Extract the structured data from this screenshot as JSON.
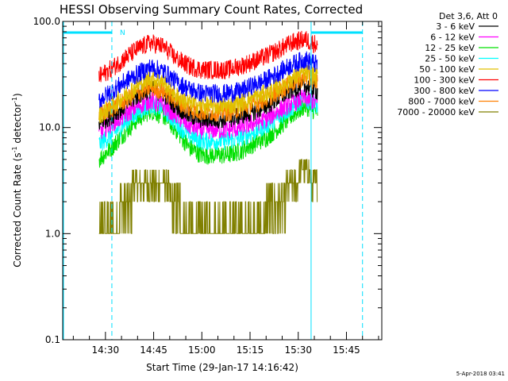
{
  "colors": {
    "3-6": "#000000",
    "6-12": "#ff00ff",
    "12-25": "#00e000",
    "25-50": "#00ffff",
    "50-100": "#e0c000",
    "100-300": "#ff0000",
    "300-800": "#0000ff",
    "800-7000": "#ff8000",
    "7000-20000": "#808000",
    "flag": "#00e0ff"
  },
  "chart_data": {
    "type": "line",
    "title": "HESSI Observing Summary Count Rates, Corrected",
    "xlabel": "Start Time (29-Jan-17 14:16:42)",
    "ylabel": "Corrected Count Rate (s⁻¹ detector⁻¹)",
    "ylabel_main": "Corrected Count Rate (s",
    "ylabel_sup1": "-1",
    "ylabel_mid": " detector",
    "ylabel_sup2": "-1",
    "ylabel_end": ")",
    "y_scale": "log",
    "ylim": [
      0.1,
      100
    ],
    "y_ticks": [
      "100.0",
      "10.0",
      "1.0",
      "0.1"
    ],
    "x_range_minutes": [
      "14:16:42",
      "15:56:00"
    ],
    "x_ticks": [
      "14:30",
      "14:45",
      "15:00",
      "15:15",
      "15:30",
      "15:45"
    ],
    "legend_title": "Det 3,6, Att 0",
    "legend_position": "right",
    "data_time_range": [
      "14:28:00",
      "15:36:00"
    ],
    "x": [
      "14:28",
      "14:32",
      "14:36",
      "14:40",
      "14:44",
      "14:48",
      "14:52",
      "14:56",
      "15:00",
      "15:04",
      "15:08",
      "15:12",
      "15:16",
      "15:20",
      "15:24",
      "15:28",
      "15:32",
      "15:36"
    ],
    "series": [
      {
        "name": "3 - 6 keV",
        "key": "3-6",
        "values": [
          11,
          13,
          16,
          20,
          23,
          21,
          16,
          13,
          12,
          12,
          12,
          13,
          14,
          16,
          19,
          23,
          25,
          22
        ]
      },
      {
        "name": "6 - 12 keV",
        "key": "6-12",
        "values": [
          9,
          11,
          13,
          16,
          18,
          16,
          13,
          10.5,
          9.5,
          9.5,
          9.5,
          10,
          11,
          12,
          14.5,
          17,
          19,
          17
        ]
      },
      {
        "name": "12 - 25 keV",
        "key": "12-25",
        "values": [
          5,
          6.5,
          9,
          12,
          14.5,
          13,
          9.5,
          6.5,
          5.5,
          5.5,
          5.5,
          6,
          7,
          8,
          10,
          13,
          16,
          14
        ]
      },
      {
        "name": "25 - 50 keV",
        "key": "25-50",
        "values": [
          7,
          8.5,
          11,
          14,
          16.5,
          15,
          11,
          8.5,
          7.5,
          7.5,
          7.5,
          8,
          9,
          10.5,
          12.5,
          15.5,
          18.5,
          16
        ]
      },
      {
        "name": "50 - 100 keV",
        "key": "50-100",
        "values": [
          13,
          16,
          20,
          25,
          29,
          27,
          20,
          17,
          16,
          16,
          16,
          17,
          19,
          21,
          24,
          29,
          33,
          30
        ]
      },
      {
        "name": "100 - 300 keV",
        "key": "100-300",
        "values": [
          30,
          36,
          45,
          55,
          63,
          58,
          45,
          38,
          35,
          35,
          35,
          38,
          42,
          47,
          54,
          63,
          68,
          60
        ]
      },
      {
        "name": "300 - 800 keV",
        "key": "300-800",
        "values": [
          18,
          22,
          27,
          32,
          37,
          34,
          27,
          23,
          21,
          21,
          21,
          22,
          25,
          28,
          33,
          39,
          44,
          39
        ]
      },
      {
        "name": "800 - 7000 keV",
        "key": "800-7000",
        "values": [
          13,
          15,
          18,
          21,
          24,
          22,
          18,
          15,
          14,
          14,
          14,
          15,
          16.5,
          18.5,
          22,
          26,
          30,
          27
        ]
      },
      {
        "name": "7000 - 20000 keV",
        "key": "7000-20000",
        "values": [
          1,
          1,
          2,
          3,
          3,
          3,
          2,
          1,
          1,
          1,
          1,
          1,
          1,
          1.5,
          2,
          3,
          4,
          3
        ]
      }
    ],
    "flag_label": "N",
    "flag_intervals": [
      [
        "14:16:42",
        "14:32:00"
      ],
      [
        "15:34:00",
        "15:50:00"
      ]
    ],
    "grid": false
  },
  "footer": {
    "timestamp": "5-Apr-2018 03:41"
  }
}
